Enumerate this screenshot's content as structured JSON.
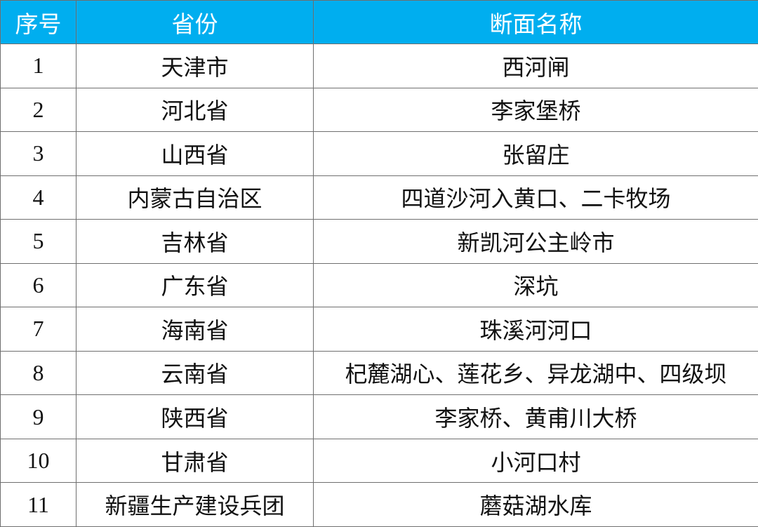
{
  "colors": {
    "header_bg": "#00aeef",
    "header_text": "#ffffff",
    "border": "#6f6f6f"
  },
  "table": {
    "headers": [
      "序号",
      "省份",
      "断面名称"
    ],
    "rows": [
      [
        "1",
        "天津市",
        "西河闸"
      ],
      [
        "2",
        "河北省",
        "李家堡桥"
      ],
      [
        "3",
        "山西省",
        "张留庄"
      ],
      [
        "4",
        "内蒙古自治区",
        "四道沙河入黄口、二卡牧场"
      ],
      [
        "5",
        "吉林省",
        "新凯河公主岭市"
      ],
      [
        "6",
        "广东省",
        "深坑"
      ],
      [
        "7",
        "海南省",
        "珠溪河河口"
      ],
      [
        "8",
        "云南省",
        "杞麓湖心、莲花乡、异龙湖中、四级坝"
      ],
      [
        "9",
        "陕西省",
        "李家桥、黄甫川大桥"
      ],
      [
        "10",
        "甘肃省",
        "小河口村"
      ],
      [
        "11",
        "新疆生产建设兵团",
        "蘑菇湖水库"
      ]
    ]
  }
}
